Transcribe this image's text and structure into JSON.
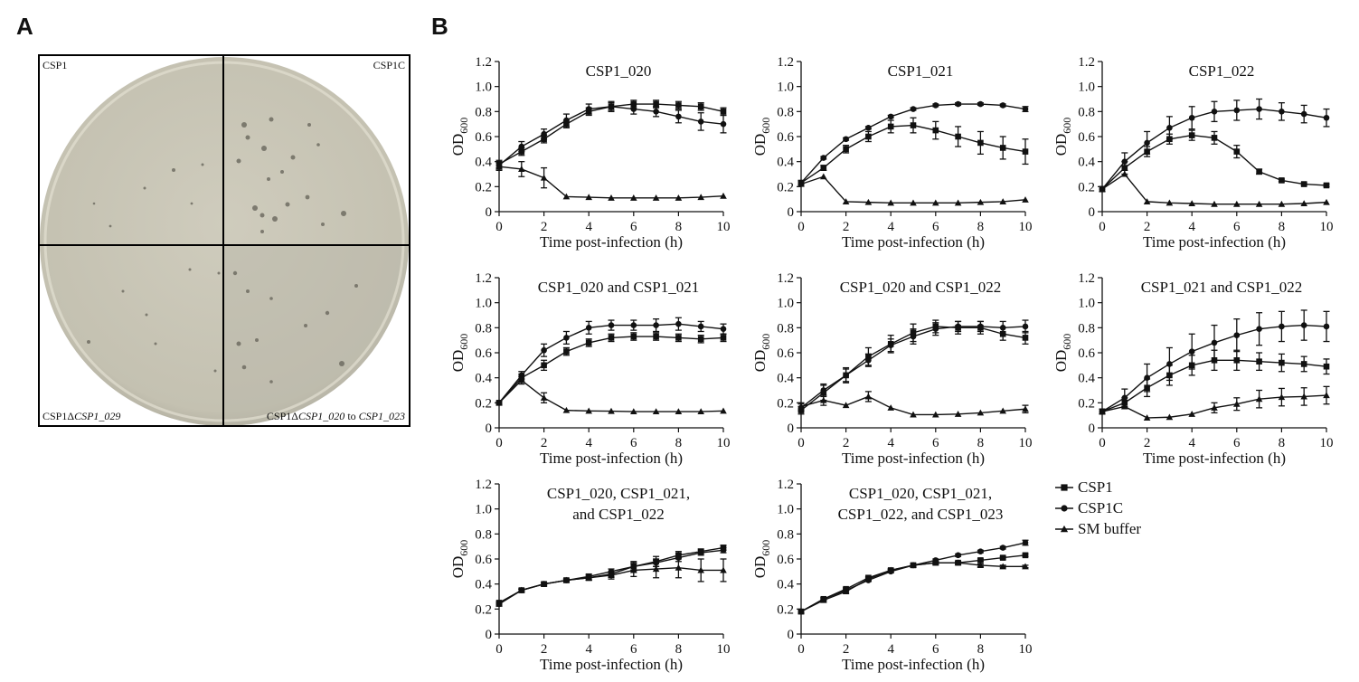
{
  "panels": {
    "a": "A",
    "b": "B"
  },
  "plate": {
    "quadrants": [
      "CSP1",
      "CSP1C"
    ],
    "label_bl_prefix": "CSP1Δ",
    "label_bl_italic": "CSP1_029",
    "label_br_prefix": "CSP1Δ",
    "label_br_italic1": "CSP1_020",
    "label_br_mid": " to ",
    "label_br_italic2": "CSP1_023"
  },
  "legend": {
    "items": [
      {
        "name": "CSP1",
        "marker": "square"
      },
      {
        "name": "CSP1C",
        "marker": "circle"
      },
      {
        "name": "SM buffer",
        "marker": "triangle"
      }
    ]
  },
  "colors": {
    "line": "#111111",
    "plate_bg": "#c9c6b6",
    "border": "#000000"
  },
  "chart_data": [
    {
      "type": "line",
      "title": [
        "CSP1_020"
      ],
      "xlabel": "Time post-infection (h)",
      "ylabel": "OD",
      "ylabel_sub": "600",
      "xlim": [
        0,
        10
      ],
      "ylim": [
        0,
        1.2
      ],
      "xticks": [
        "0",
        "2",
        "4",
        "6",
        "8",
        "10"
      ],
      "yticks": [
        "0",
        "0.2",
        "0.4",
        "0.6",
        "0.8",
        "1.0",
        "1.2"
      ],
      "x": [
        0,
        1,
        2,
        3,
        4,
        5,
        6,
        7,
        8,
        9,
        10
      ],
      "series": [
        {
          "name": "CSP1",
          "marker": "square",
          "values": [
            0.38,
            0.48,
            0.58,
            0.7,
            0.8,
            0.84,
            0.86,
            0.86,
            0.85,
            0.84,
            0.8
          ],
          "err": [
            0.03,
            0.03,
            0.03,
            0.03,
            0.03,
            0.03,
            0.03,
            0.03,
            0.03,
            0.03,
            0.03
          ]
        },
        {
          "name": "CSP1C",
          "marker": "circle",
          "values": [
            0.37,
            0.52,
            0.62,
            0.73,
            0.82,
            0.84,
            0.82,
            0.8,
            0.76,
            0.72,
            0.7
          ],
          "err": [
            0.03,
            0.04,
            0.04,
            0.05,
            0.04,
            0.04,
            0.04,
            0.04,
            0.05,
            0.07,
            0.07
          ]
        },
        {
          "name": "SM buffer",
          "marker": "triangle",
          "values": [
            0.36,
            0.34,
            0.27,
            0.12,
            0.115,
            0.11,
            0.11,
            0.11,
            0.11,
            0.115,
            0.125
          ],
          "err": [
            0.03,
            0.06,
            0.08,
            0.0,
            0.0,
            0.0,
            0.0,
            0.0,
            0.0,
            0.0,
            0.0
          ]
        }
      ]
    },
    {
      "type": "line",
      "title": [
        "CSP1_021"
      ],
      "xlabel": "Time post-infection (h)",
      "ylabel": "OD",
      "ylabel_sub": "600",
      "xlim": [
        0,
        10
      ],
      "ylim": [
        0,
        1.2
      ],
      "xticks": [
        "0",
        "2",
        "4",
        "6",
        "8",
        "10"
      ],
      "yticks": [
        "0",
        "0.2",
        "0.4",
        "0.6",
        "0.8",
        "1.0",
        "1.2"
      ],
      "x": [
        0,
        1,
        2,
        3,
        4,
        5,
        6,
        7,
        8,
        9,
        10
      ],
      "series": [
        {
          "name": "CSP1",
          "marker": "square",
          "values": [
            0.23,
            0.35,
            0.5,
            0.6,
            0.68,
            0.69,
            0.65,
            0.6,
            0.55,
            0.51,
            0.48
          ],
          "err": [
            0.02,
            0.02,
            0.03,
            0.04,
            0.05,
            0.06,
            0.07,
            0.08,
            0.09,
            0.09,
            0.1
          ]
        },
        {
          "name": "CSP1C",
          "marker": "circle",
          "values": [
            0.23,
            0.43,
            0.58,
            0.67,
            0.76,
            0.82,
            0.85,
            0.86,
            0.86,
            0.85,
            0.82
          ],
          "err": [
            0.01,
            0.01,
            0.01,
            0.01,
            0.01,
            0.01,
            0.01,
            0.01,
            0.01,
            0.01,
            0.02
          ]
        },
        {
          "name": "SM buffer",
          "marker": "triangle",
          "values": [
            0.22,
            0.28,
            0.08,
            0.075,
            0.07,
            0.07,
            0.07,
            0.07,
            0.075,
            0.08,
            0.095
          ],
          "err": [
            0,
            0,
            0,
            0,
            0,
            0,
            0,
            0,
            0,
            0,
            0
          ]
        }
      ]
    },
    {
      "type": "line",
      "title": [
        "CSP1_022"
      ],
      "xlabel": "Time post-infection (h)",
      "ylabel": "OD",
      "ylabel_sub": "600",
      "xlim": [
        0,
        10
      ],
      "ylim": [
        0,
        1.2
      ],
      "xticks": [
        "0",
        "2",
        "4",
        "6",
        "8",
        "10"
      ],
      "yticks": [
        "0",
        "0.2",
        "0.4",
        "0.6",
        "0.8",
        "1.0",
        "1.2"
      ],
      "x": [
        0,
        1,
        2,
        3,
        4,
        5,
        6,
        7,
        8,
        9,
        10
      ],
      "series": [
        {
          "name": "CSP1",
          "marker": "square",
          "values": [
            0.18,
            0.35,
            0.48,
            0.58,
            0.61,
            0.59,
            0.48,
            0.32,
            0.25,
            0.22,
            0.21
          ],
          "err": [
            0.02,
            0.05,
            0.04,
            0.04,
            0.04,
            0.05,
            0.05,
            0.02,
            0.01,
            0.01,
            0.01
          ]
        },
        {
          "name": "CSP1C",
          "marker": "circle",
          "values": [
            0.18,
            0.4,
            0.55,
            0.67,
            0.75,
            0.8,
            0.81,
            0.82,
            0.8,
            0.78,
            0.75
          ],
          "err": [
            0.02,
            0.07,
            0.09,
            0.09,
            0.09,
            0.08,
            0.08,
            0.08,
            0.07,
            0.07,
            0.07
          ]
        },
        {
          "name": "SM buffer",
          "marker": "triangle",
          "values": [
            0.18,
            0.3,
            0.08,
            0.07,
            0.065,
            0.06,
            0.06,
            0.06,
            0.06,
            0.065,
            0.075
          ],
          "err": [
            0,
            0,
            0,
            0,
            0,
            0,
            0,
            0,
            0,
            0,
            0
          ]
        }
      ]
    },
    {
      "type": "line",
      "title": [
        "CSP1_020 and CSP1_021"
      ],
      "xlabel": "Time post-infection (h)",
      "ylabel": "OD",
      "ylabel_sub": "600",
      "xlim": [
        0,
        10
      ],
      "ylim": [
        0,
        1.2
      ],
      "xticks": [
        "0",
        "2",
        "4",
        "6",
        "8",
        "10"
      ],
      "yticks": [
        "0",
        "0.2",
        "0.4",
        "0.6",
        "0.8",
        "1.0",
        "1.2"
      ],
      "x": [
        0,
        1,
        2,
        3,
        4,
        5,
        6,
        7,
        8,
        9,
        10
      ],
      "series": [
        {
          "name": "CSP1",
          "marker": "square",
          "values": [
            0.2,
            0.4,
            0.5,
            0.61,
            0.68,
            0.72,
            0.73,
            0.73,
            0.72,
            0.71,
            0.72
          ],
          "err": [
            0.01,
            0.03,
            0.04,
            0.03,
            0.03,
            0.03,
            0.03,
            0.03,
            0.03,
            0.03,
            0.03
          ]
        },
        {
          "name": "CSP1C",
          "marker": "circle",
          "values": [
            0.2,
            0.42,
            0.62,
            0.72,
            0.8,
            0.82,
            0.82,
            0.82,
            0.83,
            0.81,
            0.79
          ],
          "err": [
            0.01,
            0.03,
            0.05,
            0.05,
            0.05,
            0.04,
            0.04,
            0.05,
            0.05,
            0.04,
            0.04
          ]
        },
        {
          "name": "SM buffer",
          "marker": "triangle",
          "values": [
            0.2,
            0.38,
            0.24,
            0.14,
            0.135,
            0.133,
            0.13,
            0.13,
            0.13,
            0.13,
            0.135
          ],
          "err": [
            0.01,
            0.03,
            0.04,
            0,
            0,
            0,
            0,
            0,
            0,
            0,
            0
          ]
        }
      ]
    },
    {
      "type": "line",
      "title": [
        "CSP1_020 and CSP1_022"
      ],
      "xlabel": "Time post-infection (h)",
      "ylabel": "OD",
      "ylabel_sub": "600",
      "xlim": [
        0,
        10
      ],
      "ylim": [
        0,
        1.2
      ],
      "xticks": [
        "0",
        "2",
        "4",
        "6",
        "8",
        "10"
      ],
      "yticks": [
        "0",
        "0.2",
        "0.4",
        "0.6",
        "0.8",
        "1.0",
        "1.2"
      ],
      "x": [
        0,
        1,
        2,
        3,
        4,
        5,
        6,
        7,
        8,
        9,
        10
      ],
      "series": [
        {
          "name": "CSP1",
          "marker": "square",
          "values": [
            0.14,
            0.28,
            0.42,
            0.57,
            0.67,
            0.76,
            0.81,
            0.8,
            0.8,
            0.75,
            0.72
          ],
          "err": [
            0.03,
            0.06,
            0.06,
            0.07,
            0.07,
            0.07,
            0.05,
            0.05,
            0.05,
            0.05,
            0.05
          ]
        },
        {
          "name": "CSP1C",
          "marker": "circle",
          "values": [
            0.16,
            0.3,
            0.42,
            0.54,
            0.66,
            0.73,
            0.79,
            0.81,
            0.81,
            0.8,
            0.81
          ],
          "err": [
            0.03,
            0.05,
            0.05,
            0.05,
            0.05,
            0.06,
            0.05,
            0.04,
            0.04,
            0.05,
            0.05
          ]
        },
        {
          "name": "SM buffer",
          "marker": "triangle",
          "values": [
            0.17,
            0.22,
            0.18,
            0.25,
            0.16,
            0.105,
            0.105,
            0.11,
            0.12,
            0.135,
            0.15
          ],
          "err": [
            0.03,
            0.04,
            0,
            0.04,
            0,
            0,
            0,
            0,
            0,
            0,
            0.03
          ]
        }
      ]
    },
    {
      "type": "line",
      "title": [
        "CSP1_021 and CSP1_022"
      ],
      "xlabel": "Time post-infection (h)",
      "ylabel": "OD",
      "ylabel_sub": "600",
      "xlim": [
        0,
        10
      ],
      "ylim": [
        0,
        1.2
      ],
      "xticks": [
        "0",
        "2",
        "4",
        "6",
        "8",
        "10"
      ],
      "yticks": [
        "0",
        "0.2",
        "0.4",
        "0.6",
        "0.8",
        "1.0",
        "1.2"
      ],
      "x": [
        0,
        1,
        2,
        3,
        4,
        5,
        6,
        7,
        8,
        9,
        10
      ],
      "series": [
        {
          "name": "CSP1",
          "marker": "square",
          "values": [
            0.13,
            0.2,
            0.32,
            0.42,
            0.5,
            0.54,
            0.54,
            0.53,
            0.52,
            0.51,
            0.49
          ],
          "err": [
            0.02,
            0.04,
            0.07,
            0.08,
            0.08,
            0.08,
            0.08,
            0.07,
            0.07,
            0.06,
            0.06
          ]
        },
        {
          "name": "CSP1C",
          "marker": "circle",
          "values": [
            0.13,
            0.24,
            0.4,
            0.51,
            0.61,
            0.68,
            0.74,
            0.79,
            0.81,
            0.82,
            0.81
          ],
          "err": [
            0.02,
            0.07,
            0.11,
            0.13,
            0.14,
            0.14,
            0.13,
            0.13,
            0.12,
            0.12,
            0.12
          ]
        },
        {
          "name": "SM buffer",
          "marker": "triangle",
          "values": [
            0.13,
            0.17,
            0.08,
            0.085,
            0.11,
            0.16,
            0.19,
            0.23,
            0.245,
            0.25,
            0.26
          ],
          "err": [
            0,
            0,
            0,
            0,
            0,
            0.04,
            0.05,
            0.07,
            0.07,
            0.07,
            0.07
          ]
        }
      ]
    },
    {
      "type": "line",
      "title": [
        "CSP1_020, CSP1_021,",
        "and CSP1_022"
      ],
      "xlabel": "Time post-infection (h)",
      "ylabel": "OD",
      "ylabel_sub": "600",
      "xlim": [
        0,
        10
      ],
      "ylim": [
        0,
        1.2
      ],
      "xticks": [
        "0",
        "2",
        "4",
        "6",
        "8",
        "10"
      ],
      "yticks": [
        "0",
        "0.2",
        "0.4",
        "0.6",
        "0.8",
        "1.0",
        "1.2"
      ],
      "x": [
        0,
        1,
        2,
        3,
        4,
        5,
        6,
        7,
        8,
        9,
        10
      ],
      "series": [
        {
          "name": "CSP1",
          "marker": "square",
          "values": [
            0.25,
            0.35,
            0.4,
            0.43,
            0.45,
            0.48,
            0.54,
            0.58,
            0.63,
            0.66,
            0.69
          ],
          "err": [
            0.01,
            0.01,
            0.01,
            0.01,
            0.02,
            0.02,
            0.04,
            0.04,
            0.03,
            0.02,
            0.02
          ]
        },
        {
          "name": "CSP1C",
          "marker": "circle",
          "values": [
            0.24,
            0.35,
            0.4,
            0.43,
            0.46,
            0.5,
            0.54,
            0.57,
            0.61,
            0.65,
            0.67
          ],
          "err": [
            0.01,
            0.01,
            0.01,
            0.01,
            0.02,
            0.02,
            0.03,
            0.03,
            0.03,
            0.02,
            0.02
          ]
        },
        {
          "name": "SM buffer",
          "marker": "triangle",
          "values": [
            0.24,
            0.35,
            0.4,
            0.43,
            0.45,
            0.47,
            0.51,
            0.52,
            0.53,
            0.51,
            0.51
          ],
          "err": [
            0.01,
            0.01,
            0.01,
            0.01,
            0.02,
            0.03,
            0.05,
            0.07,
            0.08,
            0.09,
            0.09
          ]
        }
      ]
    },
    {
      "type": "line",
      "title": [
        "CSP1_020, CSP1_021,",
        "CSP1_022, and CSP1_023"
      ],
      "xlabel": "Time post-infection (h)",
      "ylabel": "OD",
      "ylabel_sub": "600",
      "xlim": [
        0,
        10
      ],
      "ylim": [
        0,
        1.2
      ],
      "xticks": [
        "0",
        "2",
        "4",
        "6",
        "8",
        "10"
      ],
      "yticks": [
        "0",
        "0.2",
        "0.4",
        "0.6",
        "0.8",
        "1.0",
        "1.2"
      ],
      "x": [
        0,
        1,
        2,
        3,
        4,
        5,
        6,
        7,
        8,
        9,
        10
      ],
      "series": [
        {
          "name": "CSP1",
          "marker": "square",
          "values": [
            0.18,
            0.28,
            0.36,
            0.45,
            0.51,
            0.55,
            0.57,
            0.57,
            0.59,
            0.61,
            0.63
          ],
          "err": [
            0.01,
            0.01,
            0.01,
            0.01,
            0.01,
            0.01,
            0.01,
            0.01,
            0.01,
            0.01,
            0.01
          ]
        },
        {
          "name": "CSP1C",
          "marker": "circle",
          "values": [
            0.18,
            0.28,
            0.35,
            0.43,
            0.5,
            0.55,
            0.59,
            0.63,
            0.66,
            0.69,
            0.73
          ],
          "err": [
            0.01,
            0.01,
            0.01,
            0.01,
            0.01,
            0.01,
            0.01,
            0.01,
            0.01,
            0.01,
            0.02
          ]
        },
        {
          "name": "SM buffer",
          "marker": "triangle",
          "values": [
            0.18,
            0.27,
            0.34,
            0.44,
            0.51,
            0.55,
            0.57,
            0.57,
            0.55,
            0.54,
            0.54
          ],
          "err": [
            0.01,
            0.01,
            0.01,
            0.01,
            0.01,
            0.01,
            0.01,
            0.01,
            0.01,
            0.01,
            0.01
          ]
        }
      ]
    }
  ]
}
